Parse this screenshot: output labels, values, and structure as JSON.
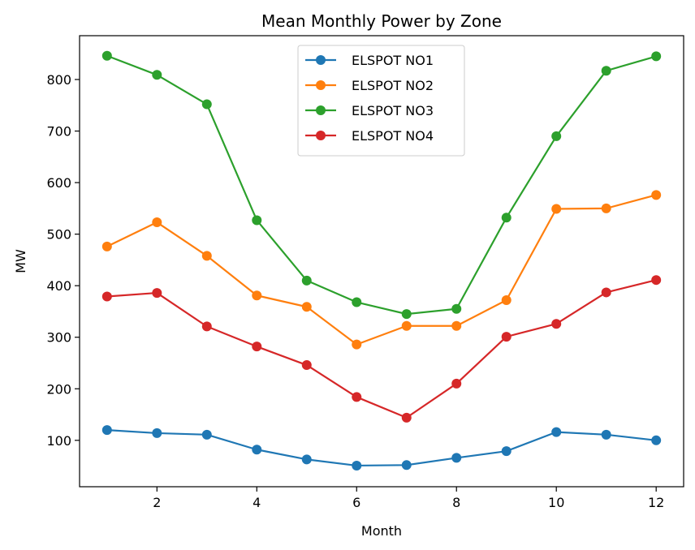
{
  "chart_data": {
    "type": "line",
    "title": "Mean Monthly Power by Zone",
    "xlabel": "Month",
    "ylabel": "MW",
    "x": [
      1,
      2,
      3,
      4,
      5,
      6,
      7,
      8,
      9,
      10,
      11,
      12
    ],
    "xlim": [
      0.45,
      12.55
    ],
    "ylim": [
      10,
      885
    ],
    "xticks": [
      2,
      4,
      6,
      8,
      10,
      12
    ],
    "yticks": [
      100,
      200,
      300,
      400,
      500,
      600,
      700,
      800
    ],
    "grid": false,
    "legend_position": "top-center",
    "series": [
      {
        "name": "ELSPOT NO1",
        "color": "#1f77b4",
        "values": [
          120,
          114,
          111,
          82,
          63,
          51,
          52,
          66,
          79,
          116,
          111,
          100
        ]
      },
      {
        "name": "ELSPOT NO2",
        "color": "#ff7f0e",
        "values": [
          476,
          523,
          458,
          381,
          359,
          286,
          322,
          322,
          372,
          549,
          550,
          576
        ]
      },
      {
        "name": "ELSPOT NO3",
        "color": "#2ca02c",
        "values": [
          846,
          809,
          752,
          527,
          410,
          368,
          345,
          355,
          532,
          690,
          817,
          845
        ]
      },
      {
        "name": "ELSPOT NO4",
        "color": "#d62728",
        "values": [
          379,
          386,
          321,
          282,
          246,
          184,
          144,
          210,
          301,
          326,
          387,
          411
        ]
      }
    ]
  }
}
